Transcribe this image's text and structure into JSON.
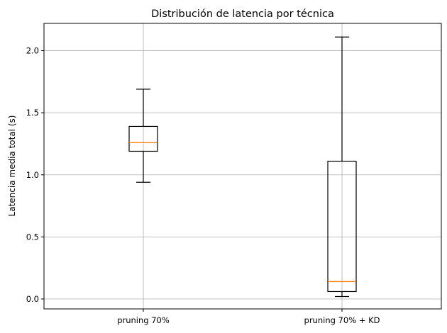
{
  "chart_data": {
    "type": "box",
    "title": "Distribución de latencia por técnica",
    "xlabel": "",
    "ylabel": "Latencia media total (s)",
    "ylim": [
      -0.08,
      2.22
    ],
    "yticks": [
      0.0,
      0.5,
      1.0,
      1.5,
      2.0
    ],
    "ytick_labels": [
      "0.0",
      "0.5",
      "1.0",
      "1.5",
      "2.0"
    ],
    "grid": true,
    "categories": [
      "pruning 70%",
      "pruning 70% + KD"
    ],
    "boxes": [
      {
        "category": "pruning 70%",
        "whisker_low": 0.94,
        "q1": 1.19,
        "median": 1.26,
        "q3": 1.39,
        "whisker_high": 1.69
      },
      {
        "category": "pruning 70% + KD",
        "whisker_low": 0.02,
        "q1": 0.06,
        "median": 0.14,
        "q3": 1.11,
        "whisker_high": 2.11
      }
    ],
    "colors": {
      "median": "#ff7f0e",
      "box": "#000000",
      "grid": "#b0b0b0"
    }
  }
}
